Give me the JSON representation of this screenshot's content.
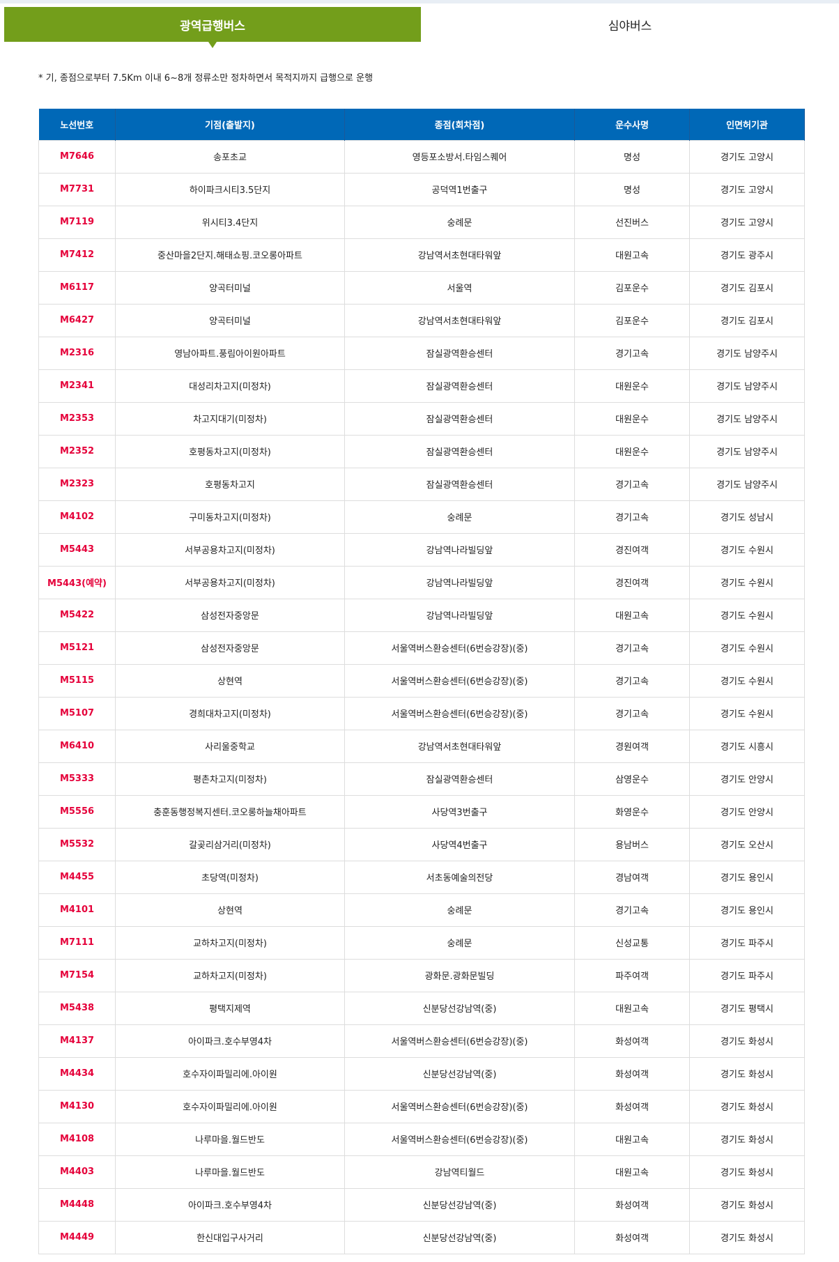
{
  "tabs": [
    {
      "label": "광역급행버스",
      "active": true
    },
    {
      "label": "심야버스",
      "active": false
    }
  ],
  "note": "* 기, 종점으로부터 7.5Km 이내 6~8개 정류소만 정차하면서 목적지까지 급행으로 운행",
  "colors": {
    "tab_active": "#739e1b",
    "header": "#0068b7",
    "route": "#e5003a"
  },
  "table": {
    "headers": [
      "노선번호",
      "기점(출발지)",
      "종점(회차점)",
      "운수사명",
      "인면허기관"
    ],
    "rows": [
      [
        "M7646",
        "송포초교",
        "영등포소방서.타임스퀘어",
        "명성",
        "경기도 고양시"
      ],
      [
        "M7731",
        "하이파크시티3.5단지",
        "공덕역1번출구",
        "명성",
        "경기도 고양시"
      ],
      [
        "M7119",
        "위시티3.4단지",
        "숭례문",
        "선진버스",
        "경기도 고양시"
      ],
      [
        "M7412",
        "중산마을2단지.해태쇼핑.코오롱아파트",
        "강남역서초현대타워앞",
        "대원고속",
        "경기도 광주시"
      ],
      [
        "M6117",
        "양곡터미널",
        "서울역",
        "김포운수",
        "경기도 김포시"
      ],
      [
        "M6427",
        "양곡터미널",
        "강남역서초현대타워앞",
        "김포운수",
        "경기도 김포시"
      ],
      [
        "M2316",
        "영남아파트.풍림아이원아파트",
        "잠실광역환승센터",
        "경기고속",
        "경기도 남양주시"
      ],
      [
        "M2341",
        "대성리차고지(미정차)",
        "잠실광역환승센터",
        "대원운수",
        "경기도 남양주시"
      ],
      [
        "M2353",
        "차고지대기(미정차)",
        "잠실광역환승센터",
        "대원운수",
        "경기도 남양주시"
      ],
      [
        "M2352",
        "호평동차고지(미정차)",
        "잠실광역환승센터",
        "대원운수",
        "경기도 남양주시"
      ],
      [
        "M2323",
        "호평동차고지",
        "잠실광역환승센터",
        "경기고속",
        "경기도 남양주시"
      ],
      [
        "M4102",
        "구미동차고지(미정차)",
        "숭례문",
        "경기고속",
        "경기도 성남시"
      ],
      [
        "M5443",
        "서부공용차고지(미정차)",
        "강남역나라빌딩앞",
        "경진여객",
        "경기도 수원시"
      ],
      [
        "M5443(예약)",
        "서부공용차고지(미정차)",
        "강남역나라빌딩앞",
        "경진여객",
        "경기도 수원시"
      ],
      [
        "M5422",
        "삼성전자중앙문",
        "강남역나라빌딩앞",
        "대원고속",
        "경기도 수원시"
      ],
      [
        "M5121",
        "삼성전자중앙문",
        "서울역버스환승센터(6번승강장)(중)",
        "경기고속",
        "경기도 수원시"
      ],
      [
        "M5115",
        "상현역",
        "서울역버스환승센터(6번승강장)(중)",
        "경기고속",
        "경기도 수원시"
      ],
      [
        "M5107",
        "경희대차고지(미정차)",
        "서울역버스환승센터(6번승강장)(중)",
        "경기고속",
        "경기도 수원시"
      ],
      [
        "M6410",
        "사리울중학교",
        "강남역서초현대타워앞",
        "경원여객",
        "경기도 시흥시"
      ],
      [
        "M5333",
        "평촌차고지(미정차)",
        "잠실광역환승센터",
        "삼영운수",
        "경기도 안양시"
      ],
      [
        "M5556",
        "충훈동행정복지센터.코오롱하늘채아파트",
        "사당역3번출구",
        "화영운수",
        "경기도 안양시"
      ],
      [
        "M5532",
        "갈곶리삼거리(미정차)",
        "사당역4번출구",
        "용남버스",
        "경기도 오산시"
      ],
      [
        "M4455",
        "초당역(미정차)",
        "서초동예술의전당",
        "경남여객",
        "경기도 용인시"
      ],
      [
        "M4101",
        "상현역",
        "숭례문",
        "경기고속",
        "경기도 용인시"
      ],
      [
        "M7111",
        "교하차고지(미정차)",
        "숭례문",
        "신성교통",
        "경기도 파주시"
      ],
      [
        "M7154",
        "교하차고지(미정차)",
        "광화문.광화문빌딩",
        "파주여객",
        "경기도 파주시"
      ],
      [
        "M5438",
        "평택지제역",
        "신분당선강남역(중)",
        "대원고속",
        "경기도 평택시"
      ],
      [
        "M4137",
        "아이파크.호수부영4차",
        "서울역버스환승센터(6번승강장)(중)",
        "화성여객",
        "경기도 화성시"
      ],
      [
        "M4434",
        "호수자이파밀리에.아이원",
        "신분당선강남역(중)",
        "화성여객",
        "경기도 화성시"
      ],
      [
        "M4130",
        "호수자이파밀리에.아이원",
        "서울역버스환승센터(6번승강장)(중)",
        "화성여객",
        "경기도 화성시"
      ],
      [
        "M4108",
        "나루마을.월드반도",
        "서울역버스환승센터(6번승강장)(중)",
        "대원고속",
        "경기도 화성시"
      ],
      [
        "M4403",
        "나루마을.월드반도",
        "강남역티월드",
        "대원고속",
        "경기도 화성시"
      ],
      [
        "M4448",
        "아이파크.호수부영4차",
        "신분당선강남역(중)",
        "화성여객",
        "경기도 화성시"
      ],
      [
        "M4449",
        "한신대입구사거리",
        "신분당선강남역(중)",
        "화성여객",
        "경기도 화성시"
      ]
    ]
  }
}
